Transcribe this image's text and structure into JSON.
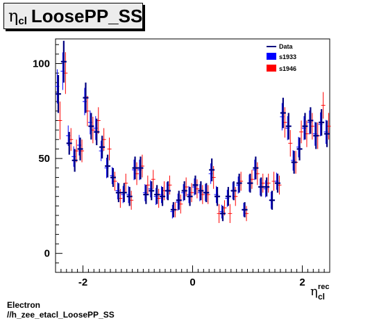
{
  "title": {
    "symbol": "η",
    "subscript": "cl",
    "text": "LoosePP_SS"
  },
  "footer": {
    "line1": "Electron",
    "line2": "//h_zee_etacl_LoosePP_SS"
  },
  "colors": {
    "data": "#00007f",
    "s1933": "#0000ff",
    "s1946": "#ff0000"
  },
  "chart_data": {
    "type": "scatter",
    "xlabel": {
      "symbol": "η",
      "subscript": "cl",
      "superscript": "rec"
    },
    "ylabel": "",
    "xlim": [
      -2.5,
      2.5
    ],
    "ylim": [
      -10,
      113
    ],
    "xticks": [
      -2,
      0,
      2
    ],
    "yticks": [
      0,
      50,
      100
    ],
    "legend_position": "top-right",
    "legend": [
      {
        "label": "Data",
        "style": "line"
      },
      {
        "label": "s1933",
        "style": "box"
      },
      {
        "label": "s1946",
        "style": "box"
      }
    ],
    "x": [
      -2.45,
      -2.35,
      -2.25,
      -2.15,
      -2.05,
      -1.95,
      -1.85,
      -1.75,
      -1.65,
      -1.55,
      -1.45,
      -1.35,
      -1.25,
      -1.15,
      -1.05,
      -0.95,
      -0.85,
      -0.75,
      -0.65,
      -0.55,
      -0.45,
      -0.35,
      -0.25,
      -0.15,
      -0.05,
      0.05,
      0.15,
      0.25,
      0.35,
      0.45,
      0.55,
      0.65,
      0.75,
      0.85,
      0.95,
      1.05,
      1.15,
      1.25,
      1.35,
      1.45,
      1.55,
      1.65,
      1.75,
      1.85,
      1.95,
      2.05,
      2.15,
      2.25,
      2.35,
      2.45
    ],
    "series": [
      {
        "name": "Data",
        "values": [
          84,
          101,
          58,
          49,
          55,
          82,
          67,
          64,
          56,
          46,
          40,
          32,
          32,
          30,
          45,
          45,
          31,
          33,
          31,
          30,
          33,
          23,
          28,
          33,
          30,
          36,
          33,
          32,
          44,
          30,
          21,
          30,
          33,
          37,
          23,
          37,
          45,
          35,
          35,
          28,
          37,
          74,
          67,
          48,
          55,
          67,
          70,
          62,
          69,
          63
        ]
      },
      {
        "name": "s1933",
        "values": [
          88,
          96,
          62,
          51,
          57,
          80,
          69,
          66,
          54,
          45,
          41,
          33,
          31,
          31,
          44,
          44,
          32,
          34,
          30,
          31,
          33,
          22,
          27,
          32,
          31,
          35,
          32,
          32,
          42,
          31,
          22,
          29,
          33,
          36,
          23,
          37,
          44,
          35,
          34,
          28,
          38,
          72,
          66,
          49,
          56,
          66,
          69,
          63,
          68,
          64
        ]
      },
      {
        "name": "s1946",
        "values": [
          70,
          95,
          60,
          54,
          54,
          75,
          65,
          70,
          60,
          55,
          38,
          29,
          37,
          28,
          42,
          46,
          36,
          39,
          29,
          33,
          36,
          23,
          26,
          35,
          32,
          34,
          31,
          31,
          40,
          21,
          24,
          21,
          30,
          38,
          21,
          39,
          42,
          37,
          37,
          38,
          36,
          69,
          58,
          48,
          64,
          63,
          67,
          62,
          78,
          67
        ]
      }
    ],
    "errors": [
      10,
      11,
      6,
      6,
      6,
      8,
      7,
      7,
      6,
      6,
      5,
      5,
      5,
      5,
      6,
      6,
      5,
      5,
      5,
      5,
      5,
      4,
      5,
      5,
      5,
      5,
      5,
      5,
      6,
      5,
      4,
      5,
      5,
      5,
      4,
      5,
      6,
      5,
      5,
      5,
      5,
      8,
      7,
      6,
      6,
      7,
      7,
      7,
      7,
      7
    ]
  }
}
